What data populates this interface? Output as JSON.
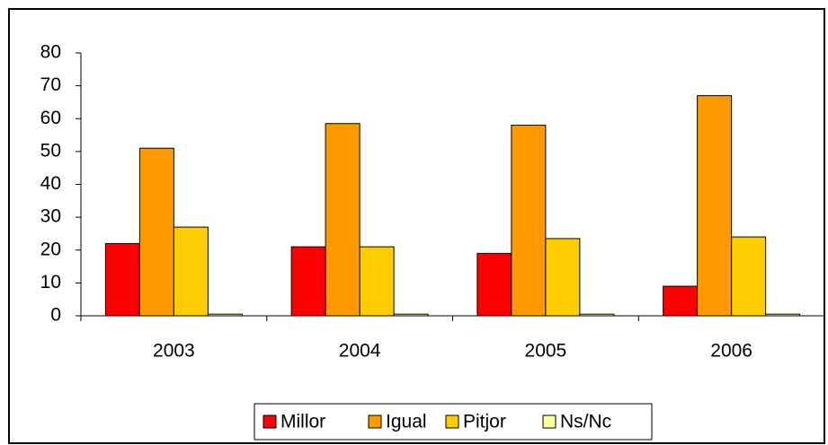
{
  "chart_data": {
    "type": "bar",
    "categories": [
      "2003",
      "2004",
      "2005",
      "2006"
    ],
    "series": [
      {
        "name": "Millor",
        "color": "#ff0000",
        "values": [
          22,
          21,
          19,
          9
        ]
      },
      {
        "name": "Igual",
        "color": "#ff9900",
        "values": [
          51,
          58.5,
          58,
          67
        ]
      },
      {
        "name": "Pitjor",
        "color": "#ffcc00",
        "values": [
          27,
          21,
          23.5,
          24
        ]
      },
      {
        "name": "Ns/Nc",
        "color": "#ffff99",
        "values": [
          0.5,
          0.5,
          0.5,
          0.5
        ]
      }
    ],
    "ylim": [
      0,
      80
    ],
    "yticks": [
      0,
      10,
      20,
      30,
      40,
      50,
      60,
      70,
      80
    ],
    "legend": "bottom"
  }
}
